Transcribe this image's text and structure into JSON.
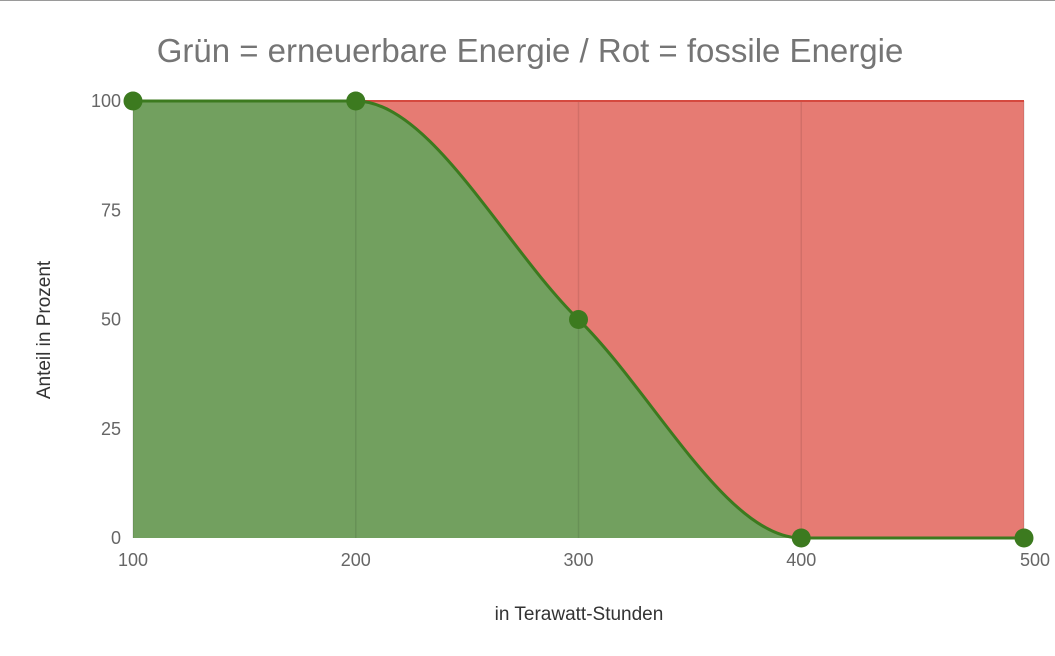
{
  "chart_data": {
    "type": "area",
    "title": "Grün = erneuerbare Energie / Rot = fossile Energie",
    "xlabel": "in Terawatt-Stunden",
    "ylabel": "Anteil in Prozent",
    "x": [
      100,
      200,
      300,
      400,
      500
    ],
    "series": [
      {
        "values": [
          100,
          100,
          50,
          0,
          0
        ],
        "color": "#72a05f",
        "line_color": "#3c7a1f"
      }
    ],
    "background_color": "#e67b73",
    "xlim": [
      100,
      500
    ],
    "ylim": [
      0,
      100
    ],
    "x_ticks": [
      "100",
      "200",
      "300",
      "400",
      "500"
    ],
    "y_ticks": [
      "0",
      "25",
      "50",
      "75",
      "100"
    ],
    "grid": true
  }
}
